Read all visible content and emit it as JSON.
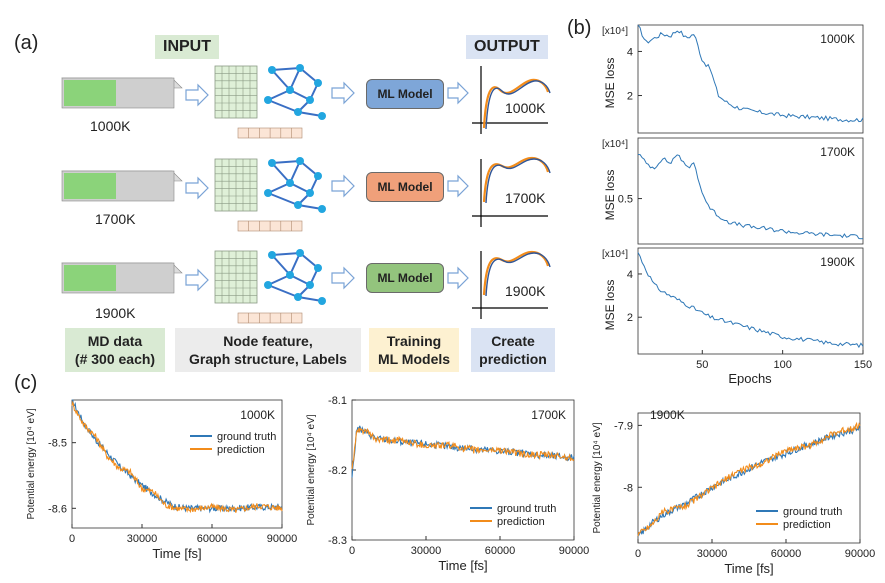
{
  "panel_a": {
    "label": "(a)",
    "input_header": "INPUT",
    "output_header": "OUTPUT",
    "rows": [
      {
        "temp": "1000K",
        "model": "ML Model",
        "model_color": "#7ea6d8",
        "out_label": "1000K"
      },
      {
        "temp": "1700K",
        "model": "ML Model",
        "model_color": "#f0a07a",
        "out_label": "1700K"
      },
      {
        "temp": "1900K",
        "model": "ML Model",
        "model_color": "#93c47d",
        "out_label": "1900K"
      }
    ],
    "footer": [
      {
        "line1": "MD data",
        "line2": "(# 300 each)",
        "bg": "#d9ead3"
      },
      {
        "line1": "Node feature,",
        "line2": "Graph structure, Labels",
        "bg": "#ececec"
      },
      {
        "line1": "Training",
        "line2": "ML Models",
        "bg": "#fdf1d1"
      },
      {
        "line1": "Create",
        "line2": "prediction",
        "bg": "#dae3f3"
      }
    ],
    "colors": {
      "input_bg": "#d9ead3",
      "output_bg": "#dae3f3",
      "graph": "#3a6fc4",
      "node": "#22a6e0",
      "grid": "#dff0d8"
    }
  },
  "panel_b": {
    "label": "(b)",
    "ylabel": "MSE loss",
    "xlabel": "Epochs",
    "scale_label": "[x10⁴]"
  },
  "panel_c": {
    "label": "(c)",
    "ylabel": "Potential energy [10⁴ eV]",
    "xlabel": "Time [fs]",
    "legend": [
      "ground truth",
      "prediction"
    ]
  },
  "chart_data": [
    {
      "type": "line",
      "panel": "b",
      "title": "1000K",
      "xlabel": "",
      "ylabel": "MSE loss",
      "xlim": [
        10,
        150
      ],
      "ylim": [
        0.3,
        5.2
      ],
      "yticks": [
        2.0,
        4.0
      ],
      "xticks": [],
      "series": [
        {
          "color": "#2f78b7",
          "x": [
            10,
            15,
            20,
            25,
            30,
            35,
            40,
            45,
            50,
            55,
            60,
            65,
            70,
            80,
            90,
            100,
            110,
            120,
            130,
            140,
            150
          ],
          "values": [
            5.2,
            4.4,
            4.6,
            4.8,
            4.7,
            5.0,
            4.6,
            4.8,
            3.6,
            3.2,
            2.0,
            1.7,
            1.5,
            1.3,
            1.2,
            1.1,
            1.05,
            1.0,
            0.95,
            0.9,
            0.9
          ]
        }
      ]
    },
    {
      "type": "line",
      "panel": "b",
      "title": "1700K",
      "xlabel": "",
      "ylabel": "MSE loss",
      "xlim": [
        10,
        150
      ],
      "ylim": [
        0.05,
        1.1
      ],
      "yticks": [
        0.5
      ],
      "xticks": [],
      "series": [
        {
          "color": "#2f78b7",
          "x": [
            10,
            15,
            20,
            25,
            30,
            35,
            40,
            45,
            50,
            55,
            60,
            65,
            70,
            80,
            90,
            100,
            110,
            120,
            130,
            140,
            150
          ],
          "values": [
            0.95,
            0.85,
            0.8,
            0.9,
            0.85,
            0.95,
            0.8,
            0.85,
            0.55,
            0.4,
            0.33,
            0.28,
            0.25,
            0.22,
            0.2,
            0.18,
            0.16,
            0.15,
            0.14,
            0.13,
            0.12
          ]
        }
      ]
    },
    {
      "type": "line",
      "panel": "b",
      "title": "1900K",
      "xlabel": "Epochs",
      "ylabel": "MSE loss",
      "xlim": [
        10,
        150
      ],
      "ylim": [
        0.3,
        5.2
      ],
      "yticks": [
        2.0,
        4.0
      ],
      "xticks": [
        50,
        100,
        150
      ],
      "series": [
        {
          "color": "#2f78b7",
          "x": [
            10,
            15,
            20,
            25,
            30,
            35,
            40,
            45,
            50,
            55,
            60,
            65,
            70,
            80,
            90,
            100,
            110,
            120,
            130,
            140,
            150
          ],
          "values": [
            5.0,
            4.2,
            3.5,
            3.2,
            3.0,
            2.8,
            2.6,
            2.4,
            2.2,
            2.0,
            1.9,
            1.8,
            1.7,
            1.5,
            1.3,
            1.1,
            1.0,
            0.9,
            0.8,
            0.75,
            0.7
          ]
        }
      ]
    },
    {
      "type": "line",
      "panel": "c",
      "title": "1000K",
      "xlabel": "Time [fs]",
      "ylabel": "Potential energy [10⁴ eV]",
      "xlim": [
        0,
        90000
      ],
      "ylim": [
        -8.63,
        -8.435
      ],
      "xticks": [
        0,
        30000,
        60000,
        90000
      ],
      "yticks": [
        -8.5,
        -8.6
      ],
      "x": [
        0,
        5000,
        10000,
        15000,
        20000,
        25000,
        30000,
        35000,
        40000,
        45000,
        50000,
        60000,
        70000,
        80000,
        90000
      ],
      "series": [
        {
          "name": "ground truth",
          "color": "#2f78b7",
          "values": [
            -8.435,
            -8.47,
            -8.495,
            -8.515,
            -8.535,
            -8.55,
            -8.565,
            -8.578,
            -8.59,
            -8.598,
            -8.6,
            -8.6,
            -8.6,
            -8.598,
            -8.598
          ]
        },
        {
          "name": "prediction",
          "color": "#f28c1b",
          "values": [
            -8.44,
            -8.472,
            -8.49,
            -8.52,
            -8.538,
            -8.545,
            -8.57,
            -8.575,
            -8.595,
            -8.6,
            -8.602,
            -8.598,
            -8.603,
            -8.596,
            -8.6
          ]
        }
      ]
    },
    {
      "type": "line",
      "panel": "c",
      "title": "1700K",
      "xlabel": "Time [fs]",
      "ylabel": "Potential energy [10⁴ eV]",
      "xlim": [
        0,
        90000
      ],
      "ylim": [
        -8.3,
        -8.1
      ],
      "xticks": [
        0,
        30000,
        60000,
        90000
      ],
      "yticks": [
        -8.1,
        -8.2,
        -8.3
      ],
      "x": [
        0,
        2000,
        5000,
        10000,
        20000,
        30000,
        40000,
        50000,
        60000,
        70000,
        80000,
        90000
      ],
      "series": [
        {
          "name": "ground truth",
          "color": "#2f78b7",
          "values": [
            -8.21,
            -8.14,
            -8.145,
            -8.155,
            -8.16,
            -8.163,
            -8.167,
            -8.17,
            -8.173,
            -8.176,
            -8.18,
            -8.182
          ]
        },
        {
          "name": "prediction",
          "color": "#f28c1b",
          "values": [
            -8.2,
            -8.145,
            -8.143,
            -8.157,
            -8.158,
            -8.165,
            -8.165,
            -8.172,
            -8.171,
            -8.178,
            -8.179,
            -8.183
          ]
        }
      ]
    },
    {
      "type": "line",
      "panel": "c",
      "title": "1900K",
      "xlabel": "Time [fs]",
      "ylabel": "Potential energy [10⁴ eV]",
      "xlim": [
        0,
        90000
      ],
      "ylim": [
        -8.09,
        -7.88
      ],
      "xticks": [
        0,
        30000,
        60000,
        90000
      ],
      "yticks": [
        -7.9,
        -8.0
      ],
      "x": [
        0,
        5000,
        10000,
        20000,
        30000,
        40000,
        50000,
        60000,
        70000,
        80000,
        90000
      ],
      "series": [
        {
          "name": "ground truth",
          "color": "#2f78b7",
          "values": [
            -8.08,
            -8.06,
            -8.045,
            -8.025,
            -8.0,
            -7.98,
            -7.96,
            -7.945,
            -7.93,
            -7.915,
            -7.905
          ]
        },
        {
          "name": "prediction",
          "color": "#f28c1b",
          "values": [
            -8.075,
            -8.062,
            -8.04,
            -8.028,
            -8.002,
            -7.975,
            -7.962,
            -7.94,
            -7.932,
            -7.912,
            -7.9
          ]
        }
      ]
    }
  ]
}
